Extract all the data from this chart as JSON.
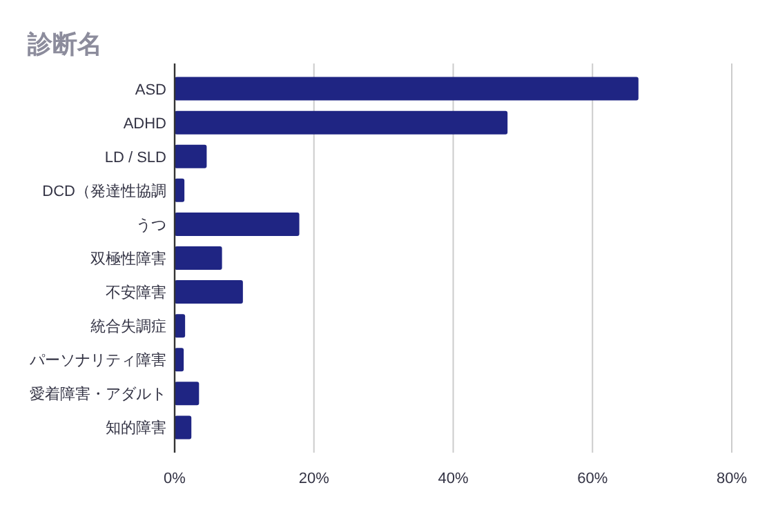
{
  "chart_data": {
    "type": "bar",
    "orientation": "horizontal",
    "title": "診断名",
    "categories": [
      "ASD",
      "ADHD",
      "LD / SLD",
      "DCD（発達性協調",
      "うつ",
      "双極性障害",
      "不安障害",
      "統合失調症",
      "パーソナリティ障害",
      "愛着障害・アダルト",
      "知的障害"
    ],
    "values": [
      66.6,
      47.8,
      4.6,
      1.4,
      17.9,
      6.8,
      9.8,
      1.5,
      1.3,
      3.5,
      2.4
    ],
    "color": "#1f2583",
    "xlim": [
      0,
      80
    ],
    "xticks": [
      {
        "value": 0,
        "label": "0%"
      },
      {
        "value": 20,
        "label": "20%"
      },
      {
        "value": 40,
        "label": "40%"
      },
      {
        "value": 60,
        "label": "60%"
      },
      {
        "value": 80,
        "label": "80%"
      }
    ],
    "grid": "x"
  }
}
